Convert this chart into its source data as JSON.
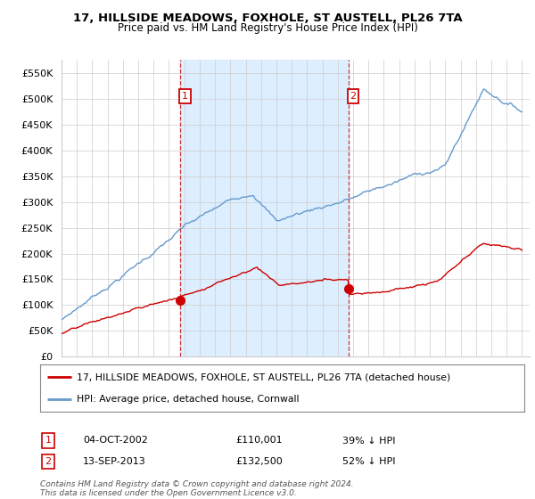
{
  "title": "17, HILLSIDE MEADOWS, FOXHOLE, ST AUSTELL, PL26 7TA",
  "subtitle": "Price paid vs. HM Land Registry's House Price Index (HPI)",
  "ylim": [
    0,
    575000
  ],
  "yticks": [
    0,
    50000,
    100000,
    150000,
    200000,
    250000,
    300000,
    350000,
    400000,
    450000,
    500000,
    550000
  ],
  "ytick_labels": [
    "£0",
    "£50K",
    "£100K",
    "£150K",
    "£200K",
    "£250K",
    "£300K",
    "£350K",
    "£400K",
    "£450K",
    "£500K",
    "£550K"
  ],
  "legend_label_red": "17, HILLSIDE MEADOWS, FOXHOLE, ST AUSTELL, PL26 7TA (detached house)",
  "legend_label_blue": "HPI: Average price, detached house, Cornwall",
  "annotation1_label": "1",
  "annotation1_date": "04-OCT-2002",
  "annotation1_price": "£110,001",
  "annotation1_hpi": "39% ↓ HPI",
  "annotation2_label": "2",
  "annotation2_date": "13-SEP-2013",
  "annotation2_price": "£132,500",
  "annotation2_hpi": "52% ↓ HPI",
  "footer": "Contains HM Land Registry data © Crown copyright and database right 2024.\nThis data is licensed under the Open Government Licence v3.0.",
  "red_color": "#cc0000",
  "blue_color": "#6699cc",
  "shade_color": "#ddeeff",
  "background_color": "#ffffff",
  "grid_color": "#cccccc",
  "sale1_x": 2002.75,
  "sale1_y": 110001,
  "sale2_x": 2013.7,
  "sale2_y": 132500,
  "vline1_x": 2002.75,
  "vline2_x": 2013.7,
  "xlim_start": 1995,
  "xlim_end": 2025.5
}
